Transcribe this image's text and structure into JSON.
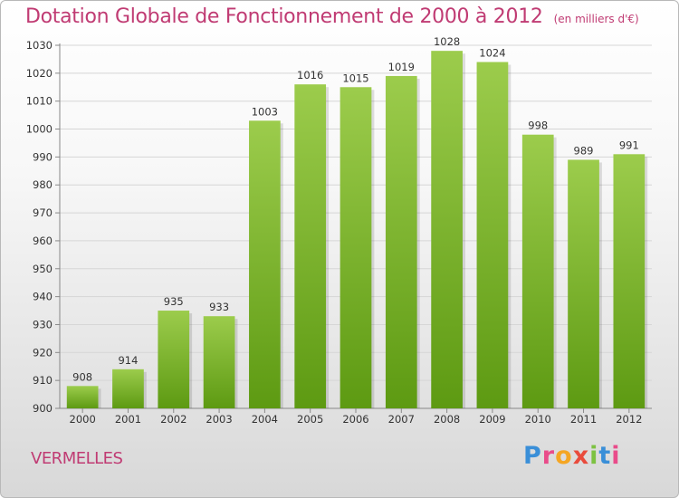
{
  "header": {
    "title": "Dotation Globale de Fonctionnement de 2000 à 2012",
    "subtitle": "(en milliers d'€)"
  },
  "footer": {
    "city": "VERMELLES",
    "logo": {
      "letters": [
        "P",
        "r",
        "o",
        "x",
        "i",
        "t",
        "i"
      ],
      "colors": [
        "#3a8fd8",
        "#e94b8a",
        "#f5a623",
        "#e94b3c",
        "#7dc242",
        "#3a8fd8",
        "#e94b8a"
      ]
    }
  },
  "colors": {
    "bar_top": "#9ccc4c",
    "bar_bottom": "#5d9a12",
    "grid": "#d6d6d6",
    "accent": "#c03b73"
  },
  "chart_data": {
    "type": "bar",
    "categories": [
      "2000",
      "2001",
      "2002",
      "2003",
      "2004",
      "2005",
      "2006",
      "2007",
      "2008",
      "2009",
      "2010",
      "2011",
      "2012"
    ],
    "values": [
      908,
      914,
      935,
      933,
      1003,
      1016,
      1015,
      1019,
      1028,
      1024,
      998,
      989,
      991
    ],
    "ylim": [
      900,
      1030
    ],
    "yticks": [
      900,
      910,
      920,
      930,
      940,
      950,
      960,
      970,
      980,
      990,
      1000,
      1010,
      1020,
      1030
    ],
    "grid": true,
    "legend": "none"
  }
}
